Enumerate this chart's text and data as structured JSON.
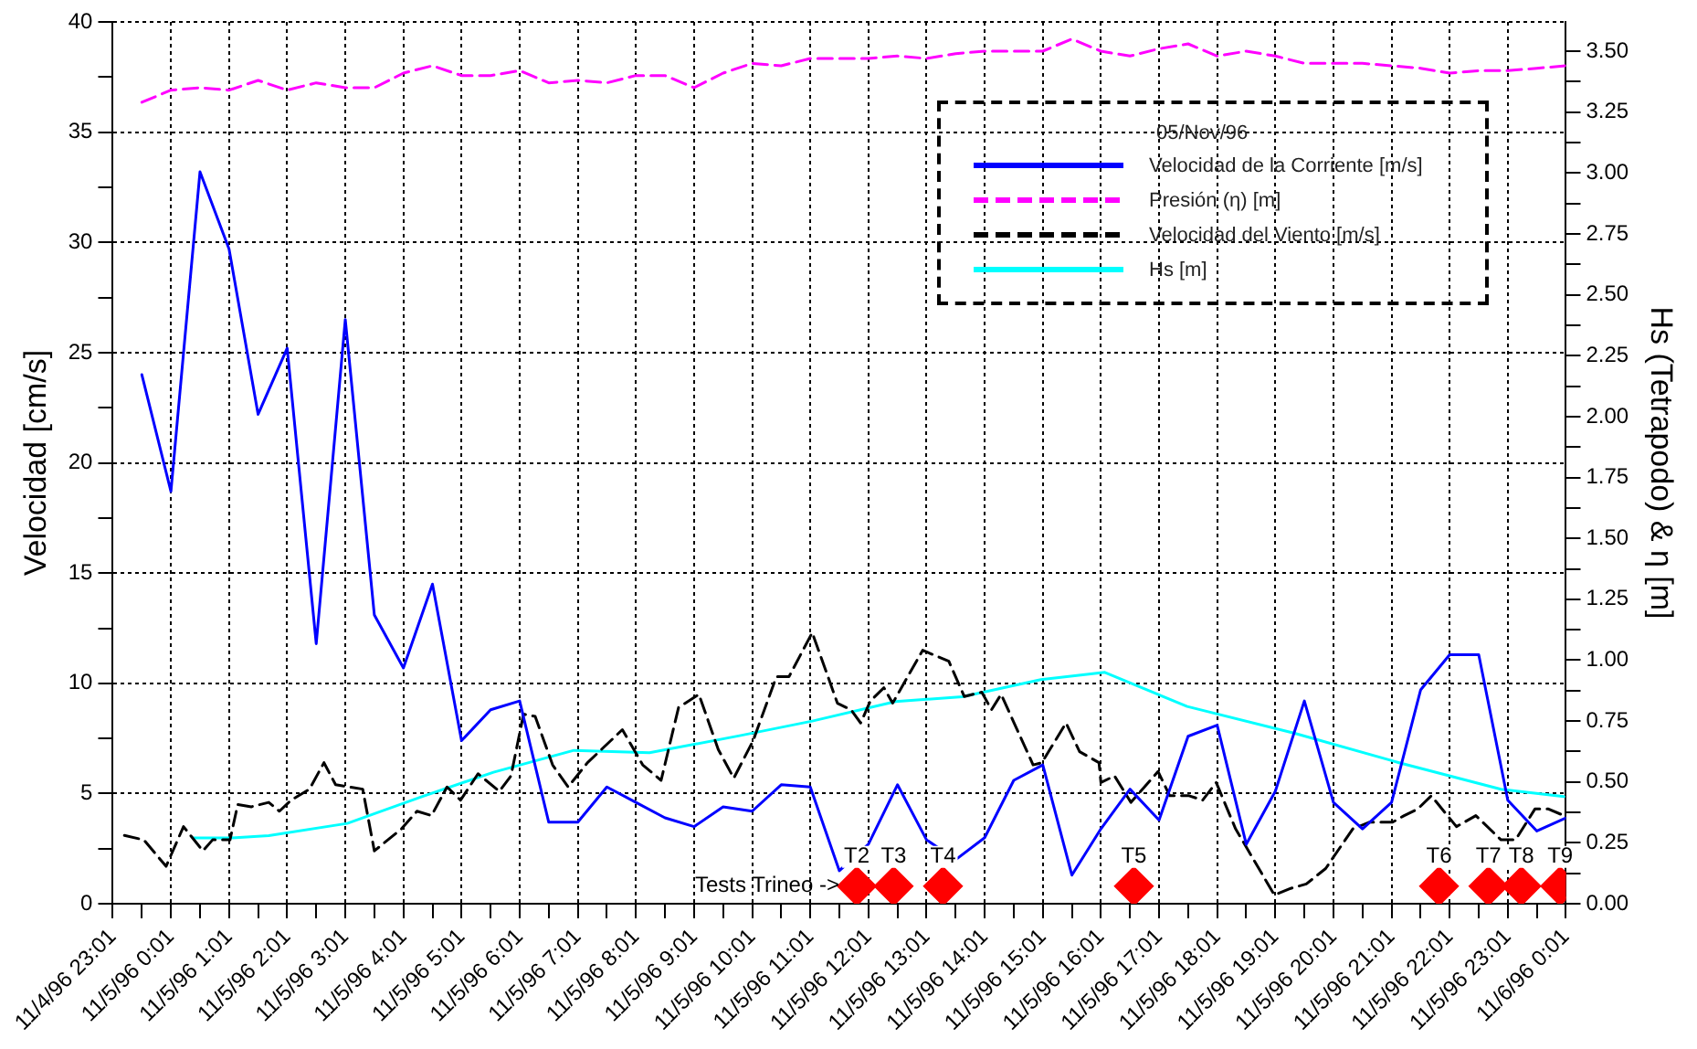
{
  "chart_data": {
    "type": "line",
    "ylabel": "Velocidad [cm/s]",
    "y2label": "Hs (Tetrapodo) & η [m]",
    "legend_title": "05/Nov/96",
    "legend": "top right",
    "grid": true,
    "marker": "none",
    "xlim": [
      "1996-11-04T23:01",
      "1996-11-06T00:01"
    ],
    "xticks": [
      {
        "value": "1996-11-04T23:01",
        "label": "11/4/96 23:01"
      },
      {
        "value": "1996-11-04T23:31",
        "label": null
      },
      {
        "value": "1996-11-05T00:01",
        "label": "11/5/96 0:01"
      },
      {
        "value": "1996-11-05T00:31",
        "label": null
      },
      {
        "value": "1996-11-05T01:01",
        "label": "11/5/96 1:01"
      },
      {
        "value": "1996-11-05T01:31",
        "label": null
      },
      {
        "value": "1996-11-05T02:01",
        "label": "11/5/96 2:01"
      },
      {
        "value": "1996-11-05T02:31",
        "label": null
      },
      {
        "value": "1996-11-05T03:01",
        "label": "11/5/96 3:01"
      },
      {
        "value": "1996-11-05T03:31",
        "label": null
      },
      {
        "value": "1996-11-05T04:01",
        "label": "11/5/96 4:01"
      },
      {
        "value": "1996-11-05T04:31",
        "label": null
      },
      {
        "value": "1996-11-05T05:01",
        "label": "11/5/96 5:01"
      },
      {
        "value": "1996-11-05T05:31",
        "label": null
      },
      {
        "value": "1996-11-05T06:01",
        "label": "11/5/96 6:01"
      },
      {
        "value": "1996-11-05T06:31",
        "label": null
      },
      {
        "value": "1996-11-05T07:01",
        "label": "11/5/96 7:01"
      },
      {
        "value": "1996-11-05T07:31",
        "label": null
      },
      {
        "value": "1996-11-05T08:01",
        "label": "11/5/96 8:01"
      },
      {
        "value": "1996-11-05T08:31",
        "label": null
      },
      {
        "value": "1996-11-05T09:01",
        "label": "11/5/96 9:01"
      },
      {
        "value": "1996-11-05T09:31",
        "label": null
      },
      {
        "value": "1996-11-05T10:01",
        "label": "11/5/96 10:01"
      },
      {
        "value": "1996-11-05T10:31",
        "label": null
      },
      {
        "value": "1996-11-05T11:01",
        "label": "11/5/96 11:01"
      },
      {
        "value": "1996-11-05T11:31",
        "label": null
      },
      {
        "value": "1996-11-05T12:01",
        "label": "11/5/96 12:01"
      },
      {
        "value": "1996-11-05T12:31",
        "label": null
      },
      {
        "value": "1996-11-05T13:01",
        "label": "11/5/96 13:01"
      },
      {
        "value": "1996-11-05T13:31",
        "label": null
      },
      {
        "value": "1996-11-05T14:01",
        "label": "11/5/96 14:01"
      },
      {
        "value": "1996-11-05T14:31",
        "label": null
      },
      {
        "value": "1996-11-05T15:01",
        "label": "11/5/96 15:01"
      },
      {
        "value": "1996-11-05T15:31",
        "label": null
      },
      {
        "value": "1996-11-05T16:01",
        "label": "11/5/96 16:01"
      },
      {
        "value": "1996-11-05T16:31",
        "label": null
      },
      {
        "value": "1996-11-05T17:01",
        "label": "11/5/96 17:01"
      },
      {
        "value": "1996-11-05T17:31",
        "label": null
      },
      {
        "value": "1996-11-05T18:01",
        "label": "11/5/96 18:01"
      },
      {
        "value": "1996-11-05T18:31",
        "label": null
      },
      {
        "value": "1996-11-05T19:01",
        "label": "11/5/96 19:01"
      },
      {
        "value": "1996-11-05T19:31",
        "label": null
      },
      {
        "value": "1996-11-05T20:01",
        "label": "11/5/96 20:01"
      },
      {
        "value": "1996-11-05T20:31",
        "label": null
      },
      {
        "value": "1996-11-05T21:01",
        "label": "11/5/96 21:01"
      },
      {
        "value": "1996-11-05T21:31",
        "label": null
      },
      {
        "value": "1996-11-05T22:01",
        "label": "11/5/96 22:01"
      },
      {
        "value": "1996-11-05T22:31",
        "label": null
      },
      {
        "value": "1996-11-05T23:01",
        "label": "11/5/96 23:01"
      },
      {
        "value": "1996-11-05T23:31",
        "label": null
      },
      {
        "value": "1996-11-06T00:01",
        "label": "11/6/96 0:01"
      }
    ],
    "ylim": [
      0,
      40
    ],
    "yticks": [
      0,
      {
        "value": 2.5,
        "label": null
      },
      5,
      {
        "value": 7.5,
        "label": null
      },
      10,
      {
        "value": 12.5,
        "label": null
      },
      15,
      {
        "value": 17.5,
        "label": null
      },
      20,
      {
        "value": 22.5,
        "label": null
      },
      25,
      {
        "value": 27.5,
        "label": null
      },
      30,
      {
        "value": 32.5,
        "label": null
      },
      35,
      {
        "value": 37.5,
        "label": null
      },
      40
    ],
    "y2lim": [
      0,
      3.62
    ],
    "y2ticks": [
      {
        "value": 0,
        "label": "0.00"
      },
      {
        "value": 0.125,
        "label": null
      },
      {
        "value": 0.25,
        "label": "0.25"
      },
      {
        "value": 0.375,
        "label": null
      },
      {
        "value": 0.5,
        "label": "0.50"
      },
      {
        "value": 0.625,
        "label": null
      },
      {
        "value": 0.75,
        "label": "0.75"
      },
      {
        "value": 0.875,
        "label": null
      },
      {
        "value": 1,
        "label": "1.00"
      },
      {
        "value": 1.125,
        "label": null
      },
      {
        "value": 1.25,
        "label": "1.25"
      },
      {
        "value": 1.375,
        "label": null
      },
      {
        "value": 1.5,
        "label": "1.50"
      },
      {
        "value": 1.625,
        "label": null
      },
      {
        "value": 1.75,
        "label": "1.75"
      },
      {
        "value": 1.875,
        "label": null
      },
      {
        "value": 2,
        "label": "2.00"
      },
      {
        "value": 2.125,
        "label": null
      },
      {
        "value": 2.25,
        "label": "2.25"
      },
      {
        "value": 2.375,
        "label": null
      },
      {
        "value": 2.5,
        "label": "2.50"
      },
      {
        "value": 2.625,
        "label": null
      },
      {
        "value": 2.75,
        "label": "2.75"
      },
      {
        "value": 2.875,
        "label": null
      },
      {
        "value": 3,
        "label": "3.00"
      },
      {
        "value": 3.125,
        "label": null
      },
      {
        "value": 3.25,
        "label": "3.25"
      },
      {
        "value": 3.375,
        "label": null
      },
      {
        "value": 3.5,
        "label": "3.50"
      }
    ],
    "series": [
      {
        "name": "Velocidad de la Corriente [m/s]",
        "color": "#0000ff",
        "line_style": "solid",
        "x": [
          "1996-11-04T23:31",
          "1996-11-05T00:01",
          "1996-11-05T00:31",
          "1996-11-05T01:01",
          "1996-11-05T01:31",
          "1996-11-05T02:01",
          "1996-11-05T02:31",
          "1996-11-05T03:01",
          "1996-11-05T03:31",
          "1996-11-05T04:01",
          "1996-11-05T04:31",
          "1996-11-05T05:01",
          "1996-11-05T05:31",
          "1996-11-05T06:01",
          "1996-11-05T06:31",
          "1996-11-05T07:01",
          "1996-11-05T07:31",
          "1996-11-05T08:01",
          "1996-11-05T08:31",
          "1996-11-05T09:01",
          "1996-11-05T09:31",
          "1996-11-05T10:01",
          "1996-11-05T10:31",
          "1996-11-05T11:01",
          "1996-11-05T11:31",
          "1996-11-05T12:01",
          "1996-11-05T12:31",
          "1996-11-05T13:01",
          "1996-11-05T13:31",
          "1996-11-05T14:01",
          "1996-11-05T14:31",
          "1996-11-05T15:01",
          "1996-11-05T15:31",
          "1996-11-05T16:01",
          "1996-11-05T16:31",
          "1996-11-05T17:01",
          "1996-11-05T17:31",
          "1996-11-05T18:01",
          "1996-11-05T18:31",
          "1996-11-05T19:01",
          "1996-11-05T19:31",
          "1996-11-05T20:01",
          "1996-11-05T20:31",
          "1996-11-05T21:01",
          "1996-11-05T21:31",
          "1996-11-05T22:01",
          "1996-11-05T22:31",
          "1996-11-05T23:01",
          "1996-11-05T23:31",
          "1996-11-06T00:01"
        ],
        "values": [
          24.0,
          18.7,
          33.2,
          29.7,
          22.2,
          25.2,
          11.8,
          26.5,
          13.1,
          10.7,
          14.5,
          7.4,
          8.8,
          9.2,
          3.7,
          3.7,
          5.3,
          4.6,
          3.9,
          3.5,
          4.4,
          4.2,
          5.4,
          5.3,
          1.5,
          2.7,
          5.4,
          2.9,
          2.0,
          3.0,
          5.6,
          6.3,
          1.3,
          3.4,
          5.2,
          3.8,
          7.6,
          8.1,
          2.7,
          5.1,
          9.2,
          4.6,
          3.4,
          4.6,
          9.7,
          11.3,
          11.3,
          4.7,
          3.3,
          3.9
        ]
      },
      {
        "name": "Presión (η) [m]",
        "color": "#ff00ff",
        "line_style": "dashed",
        "axis": "y2",
        "x": [
          "1996-11-04T23:31",
          "1996-11-05T00:01",
          "1996-11-05T00:31",
          "1996-11-05T01:01",
          "1996-11-05T01:31",
          "1996-11-05T02:01",
          "1996-11-05T02:31",
          "1996-11-05T03:01",
          "1996-11-05T03:31",
          "1996-11-05T04:01",
          "1996-11-05T04:31",
          "1996-11-05T05:01",
          "1996-11-05T05:31",
          "1996-11-05T06:01",
          "1996-11-05T06:31",
          "1996-11-05T07:01",
          "1996-11-05T07:31",
          "1996-11-05T08:01",
          "1996-11-05T08:31",
          "1996-11-05T09:01",
          "1996-11-05T09:31",
          "1996-11-05T10:01",
          "1996-11-05T10:31",
          "1996-11-05T11:01",
          "1996-11-05T11:31",
          "1996-11-05T12:01",
          "1996-11-05T12:31",
          "1996-11-05T13:01",
          "1996-11-05T13:31",
          "1996-11-05T14:01",
          "1996-11-05T14:31",
          "1996-11-05T15:01",
          "1996-11-05T15:31",
          "1996-11-05T16:01",
          "1996-11-05T16:31",
          "1996-11-05T17:01",
          "1996-11-05T17:31",
          "1996-11-05T18:01",
          "1996-11-05T18:31",
          "1996-11-05T19:01",
          "1996-11-05T19:31",
          "1996-11-05T20:01",
          "1996-11-05T20:31",
          "1996-11-05T21:01",
          "1996-11-05T21:31",
          "1996-11-05T22:01",
          "1996-11-05T22:31",
          "1996-11-05T23:01",
          "1996-11-05T23:31",
          "1996-11-06T00:01"
        ],
        "values": [
          3.29,
          3.34,
          3.35,
          3.34,
          3.38,
          3.34,
          3.37,
          3.35,
          3.35,
          3.41,
          3.44,
          3.4,
          3.4,
          3.42,
          3.37,
          3.38,
          3.37,
          3.4,
          3.4,
          3.35,
          3.41,
          3.45,
          3.44,
          3.47,
          3.47,
          3.47,
          3.48,
          3.47,
          3.49,
          3.5,
          3.5,
          3.5,
          3.55,
          3.5,
          3.48,
          3.51,
          3.53,
          3.48,
          3.5,
          3.48,
          3.45,
          3.45,
          3.45,
          3.44,
          3.43,
          3.41,
          3.42,
          3.42,
          3.43,
          3.44
        ]
      },
      {
        "name": "Velocidad del Viento [m/s]",
        "color": "#000000",
        "line_style": "dashed",
        "x": [
          "1996-11-04T23:13",
          "1996-11-04T23:33",
          "1996-11-04T23:56",
          "1996-11-05T00:14",
          "1996-11-05T00:34",
          "1996-11-05T00:44",
          "1996-11-05T01:02",
          "1996-11-05T01:10",
          "1996-11-05T01:24",
          "1996-11-05T01:42",
          "1996-11-05T01:53",
          "1996-11-05T02:05",
          "1996-11-05T02:24",
          "1996-11-05T02:39",
          "1996-11-05T02:51",
          "1996-11-05T03:19",
          "1996-11-05T03:31",
          "1996-11-05T03:59",
          "1996-11-05T04:15",
          "1996-11-05T04:30",
          "1996-11-05T04:46",
          "1996-11-05T05:00",
          "1996-11-05T05:18",
          "1996-11-05T05:40",
          "1996-11-05T05:52",
          "1996-11-05T06:05",
          "1996-11-05T06:17",
          "1996-11-05T06:35",
          "1996-11-05T06:51",
          "1996-11-05T07:11",
          "1996-11-05T07:47",
          "1996-11-05T08:08",
          "1996-11-05T08:27",
          "1996-11-05T08:45",
          "1996-11-05T09:06",
          "1996-11-05T09:26",
          "1996-11-05T09:42",
          "1996-11-05T10:02",
          "1996-11-05T10:26",
          "1996-11-05T10:39",
          "1996-11-05T11:03",
          "1996-11-05T11:29",
          "1996-11-05T11:43",
          "1996-11-05T11:53",
          "1996-11-05T12:03",
          "1996-11-05T12:17",
          "1996-11-05T12:26",
          "1996-11-05T12:57",
          "1996-11-05T13:24",
          "1996-11-05T13:40",
          "1996-11-05T13:58",
          "1996-11-05T14:08",
          "1996-11-05T14:18",
          "1996-11-05T14:51",
          "1996-11-05T15:00",
          "1996-11-05T15:25",
          "1996-11-05T15:39",
          "1996-11-05T15:59",
          "1996-11-05T16:01",
          "1996-11-05T16:15",
          "1996-11-05T16:32",
          "1996-11-05T17:00",
          "1996-11-05T17:12",
          "1996-11-05T17:32",
          "1996-11-05T17:46",
          "1996-11-05T18:00",
          "1996-11-05T18:20",
          "1996-11-05T18:32",
          "1996-11-05T19:00",
          "1996-11-05T19:17",
          "1996-11-05T19:33",
          "1996-11-05T19:53",
          "1996-11-05T20:21",
          "1996-11-05T20:38",
          "1996-11-05T21:02",
          "1996-11-05T21:14",
          "1996-11-05T21:28",
          "1996-11-05T21:42",
          "1996-11-05T22:08",
          "1996-11-05T22:28",
          "1996-11-05T22:54",
          "1996-11-05T23:09",
          "1996-11-05T23:29",
          "1996-11-05T23:43",
          "1996-11-05T23:59"
        ],
        "values": [
          3.1,
          2.9,
          1.7,
          3.5,
          2.4,
          2.9,
          2.9,
          4.5,
          4.4,
          4.6,
          4.2,
          4.7,
          5.2,
          6.4,
          5.4,
          5.2,
          2.4,
          3.4,
          4.2,
          4.0,
          5.3,
          4.7,
          5.9,
          5.1,
          5.8,
          8.6,
          8.5,
          6.3,
          5.3,
          6.4,
          7.9,
          6.3,
          5.6,
          8.9,
          9.5,
          7.0,
          5.7,
          7.4,
          10.3,
          10.3,
          12.3,
          9.1,
          8.8,
          8.2,
          9.2,
          9.8,
          9.1,
          11.5,
          11.0,
          9.4,
          9.6,
          8.8,
          9.5,
          6.3,
          6.4,
          8.2,
          6.9,
          6.4,
          5.5,
          5.8,
          4.6,
          6.0,
          4.9,
          4.9,
          4.7,
          5.5,
          3.4,
          2.5,
          0.4,
          0.7,
          0.9,
          1.6,
          3.4,
          3.7,
          3.7,
          4.0,
          4.3,
          4.9,
          3.5,
          4.0,
          2.9,
          2.9,
          4.3,
          4.3,
          4.0
        ]
      },
      {
        "name": "Hs [m]",
        "color": "#00ffff",
        "line_style": "solid",
        "axis": "y2",
        "x": [
          "1996-11-05T00:24",
          "1996-11-05T01:02",
          "1996-11-05T01:42",
          "1996-11-05T03:03",
          "1996-11-05T04:20",
          "1996-11-05T05:34",
          "1996-11-05T06:57",
          "1996-11-05T08:15",
          "1996-11-05T09:48",
          "1996-11-05T11:03",
          "1996-11-05T12:29",
          "1996-11-05T13:38",
          "1996-11-05T14:59",
          "1996-11-05T16:05",
          "1996-11-05T17:30",
          "1996-11-05T19:21",
          "1996-11-05T21:08",
          "1996-11-05T22:54",
          "1996-11-05T23:59"
        ],
        "values": [
          0.27,
          0.27,
          0.28,
          0.33,
          0.44,
          0.54,
          0.63,
          0.62,
          0.69,
          0.75,
          0.83,
          0.85,
          0.92,
          0.95,
          0.81,
          0.7,
          0.58,
          0.47,
          0.44
        ]
      },
      {
        "type": "scatter",
        "color": "#ff0000",
        "marker": "diamond",
        "x": [
          "1996-11-05T11:49",
          "1996-11-05T12:27",
          "1996-11-05T13:18",
          "1996-11-05T16:35",
          "1996-11-05T21:50",
          "1996-11-05T22:41",
          "1996-11-05T23:15",
          "1996-11-05T23:55"
        ],
        "values": [
          0.8,
          0.8,
          0.8,
          0.8,
          0.8,
          0.8,
          0.8,
          0.8
        ],
        "value_labels": [
          "T2",
          "T3",
          "T4",
          "T5",
          "T6",
          "T7",
          "T8",
          "T9"
        ]
      }
    ],
    "annotations": [
      {
        "text": "Tests Trineo ->",
        "x": "1996-11-05T11:31",
        "y": 0.8
      }
    ]
  }
}
